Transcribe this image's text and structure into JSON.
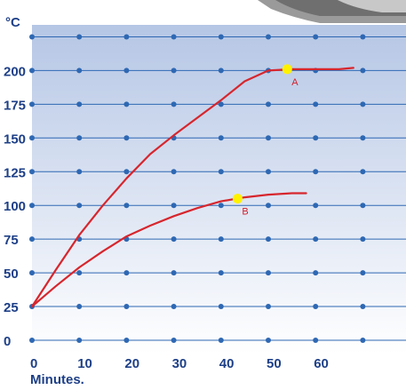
{
  "chart_data": {
    "type": "line",
    "ylabel": "°C",
    "xlabel": "Minutes.",
    "xlim": [
      0,
      68
    ],
    "ylim": [
      0,
      225
    ],
    "x_ticks": [
      0,
      10,
      20,
      30,
      40,
      50,
      60
    ],
    "y_ticks": [
      0,
      25,
      50,
      75,
      100,
      125,
      150,
      175,
      200
    ],
    "grid": true,
    "background_gradient": {
      "top": "#b5c6e5",
      "bottom": "#ffffff"
    },
    "grid_color": "#2e68b3",
    "axis_text_color": "#1d3f87",
    "series": [
      {
        "color": "#d7262d",
        "x": [
          0,
          5,
          10,
          15,
          20,
          25,
          30,
          35,
          40,
          45,
          50,
          55,
          60,
          65,
          68
        ],
        "y": [
          25,
          52,
          78,
          100,
          120,
          138,
          152,
          165,
          178,
          192,
          200,
          201,
          201,
          201,
          202
        ]
      },
      {
        "color": "#d7262d",
        "x": [
          0,
          5,
          10,
          15,
          20,
          25,
          30,
          35,
          40,
          45,
          50,
          55,
          58
        ],
        "y": [
          25,
          40,
          54,
          66,
          77,
          85,
          92,
          98,
          103,
          106,
          108,
          109,
          109
        ]
      }
    ],
    "annotations": [
      {
        "label": "A",
        "x": 54,
        "y": 201,
        "marker_color": "#fff200"
      },
      {
        "label": "B",
        "x": 43.5,
        "y": 105,
        "marker_color": "#fff200"
      }
    ]
  }
}
